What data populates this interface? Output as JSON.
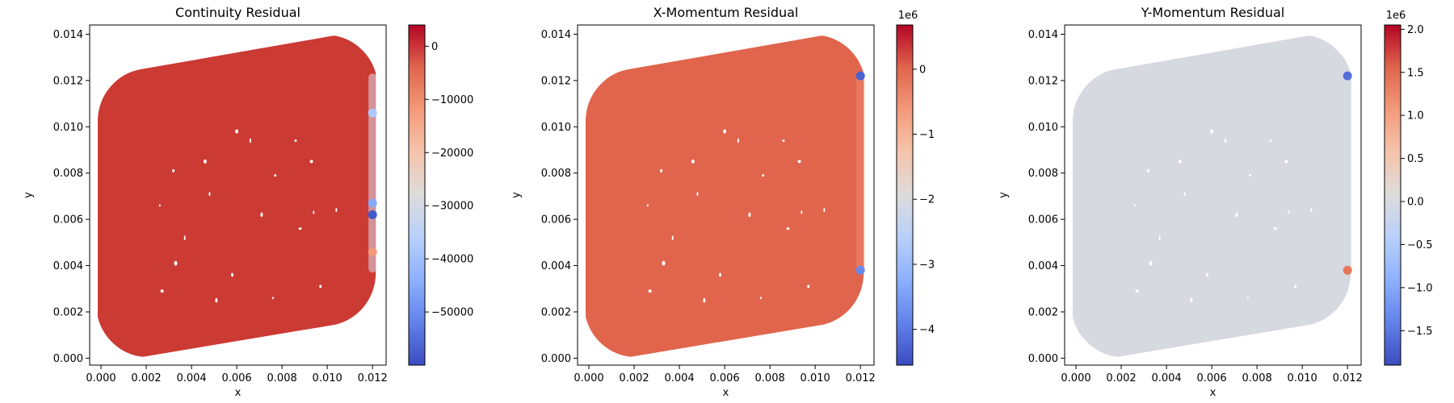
{
  "chart_data": [
    {
      "type": "scatter",
      "title": "Continuity Residual",
      "xlabel": "x",
      "ylabel": "y",
      "xlim": [
        -0.0005,
        0.0126
      ],
      "ylim": [
        -0.0003,
        0.0144
      ],
      "xticks": [
        "0.000",
        "0.002",
        "0.004",
        "0.006",
        "0.008",
        "0.010",
        "0.012"
      ],
      "yticks": [
        "0.000",
        "0.002",
        "0.004",
        "0.006",
        "0.008",
        "0.010",
        "0.012",
        "0.014"
      ],
      "domain_color": "#cb3a33",
      "outlet_strip_color": "#d8dcec",
      "colorbar": {
        "colormap": "coolwarm",
        "vmin": -60000,
        "vmax": 4000,
        "ticks": [
          0,
          -10000,
          -20000,
          -30000,
          -40000,
          -50000
        ],
        "tick_labels": [
          "0",
          "−10000",
          "−20000",
          "−30000",
          "−40000",
          "−50000"
        ],
        "offset": ""
      },
      "outlet_points": [
        {
          "x": 0.012,
          "y": 0.0106,
          "value": -38000
        },
        {
          "x": 0.012,
          "y": 0.0067,
          "value": -45000
        },
        {
          "x": 0.012,
          "y": 0.0062,
          "value": -58000
        },
        {
          "x": 0.012,
          "y": 0.0046,
          "value": -12000
        }
      ]
    },
    {
      "type": "scatter",
      "title": "X-Momentum Residual",
      "xlabel": "x",
      "ylabel": "y",
      "xlim": [
        -0.0005,
        0.0126
      ],
      "ylim": [
        -0.0003,
        0.0144
      ],
      "xticks": [
        "0.000",
        "0.002",
        "0.004",
        "0.006",
        "0.008",
        "0.010",
        "0.012"
      ],
      "yticks": [
        "0.000",
        "0.002",
        "0.004",
        "0.006",
        "0.008",
        "0.010",
        "0.012",
        "0.014"
      ],
      "domain_color": "#e0654c",
      "outlet_strip_color": "#ec8a70",
      "colorbar": {
        "colormap": "coolwarm",
        "vmin": -4.55,
        "vmax": 0.68,
        "ticks": [
          0,
          -1,
          -2,
          -3,
          -4
        ],
        "tick_labels": [
          "0",
          "−1",
          "−2",
          "−3",
          "−4"
        ],
        "offset": "1e6"
      },
      "outlet_points": [
        {
          "x": 0.012,
          "y": 0.0122,
          "value": -4.3
        },
        {
          "x": 0.012,
          "y": 0.0038,
          "value": -3.8
        }
      ]
    },
    {
      "type": "scatter",
      "title": "Y-Momentum Residual",
      "xlabel": "x",
      "ylabel": "y",
      "xlim": [
        -0.0005,
        0.0126
      ],
      "ylim": [
        -0.0003,
        0.0144
      ],
      "xticks": [
        "0.000",
        "0.002",
        "0.004",
        "0.006",
        "0.008",
        "0.010",
        "0.012"
      ],
      "yticks": [
        "0.000",
        "0.002",
        "0.004",
        "0.006",
        "0.008",
        "0.010",
        "0.012",
        "0.014"
      ],
      "domain_color": "#d6d9e0",
      "outlet_strip_color": "#d6d9e0",
      "colorbar": {
        "colormap": "coolwarm",
        "vmin": -1.9,
        "vmax": 2.05,
        "ticks": [
          2.0,
          1.5,
          1.0,
          0.5,
          0.0,
          -0.5,
          -1.0,
          -1.5
        ],
        "tick_labels": [
          "2.0",
          "1.5",
          "1.0",
          "0.5",
          "0.0",
          "−0.5",
          "−1.0",
          "−1.5"
        ],
        "offset": "1e6"
      },
      "outlet_points": [
        {
          "x": 0.012,
          "y": 0.0122,
          "value": -1.6
        },
        {
          "x": 0.012,
          "y": 0.0038,
          "value": 1.4
        }
      ]
    }
  ]
}
